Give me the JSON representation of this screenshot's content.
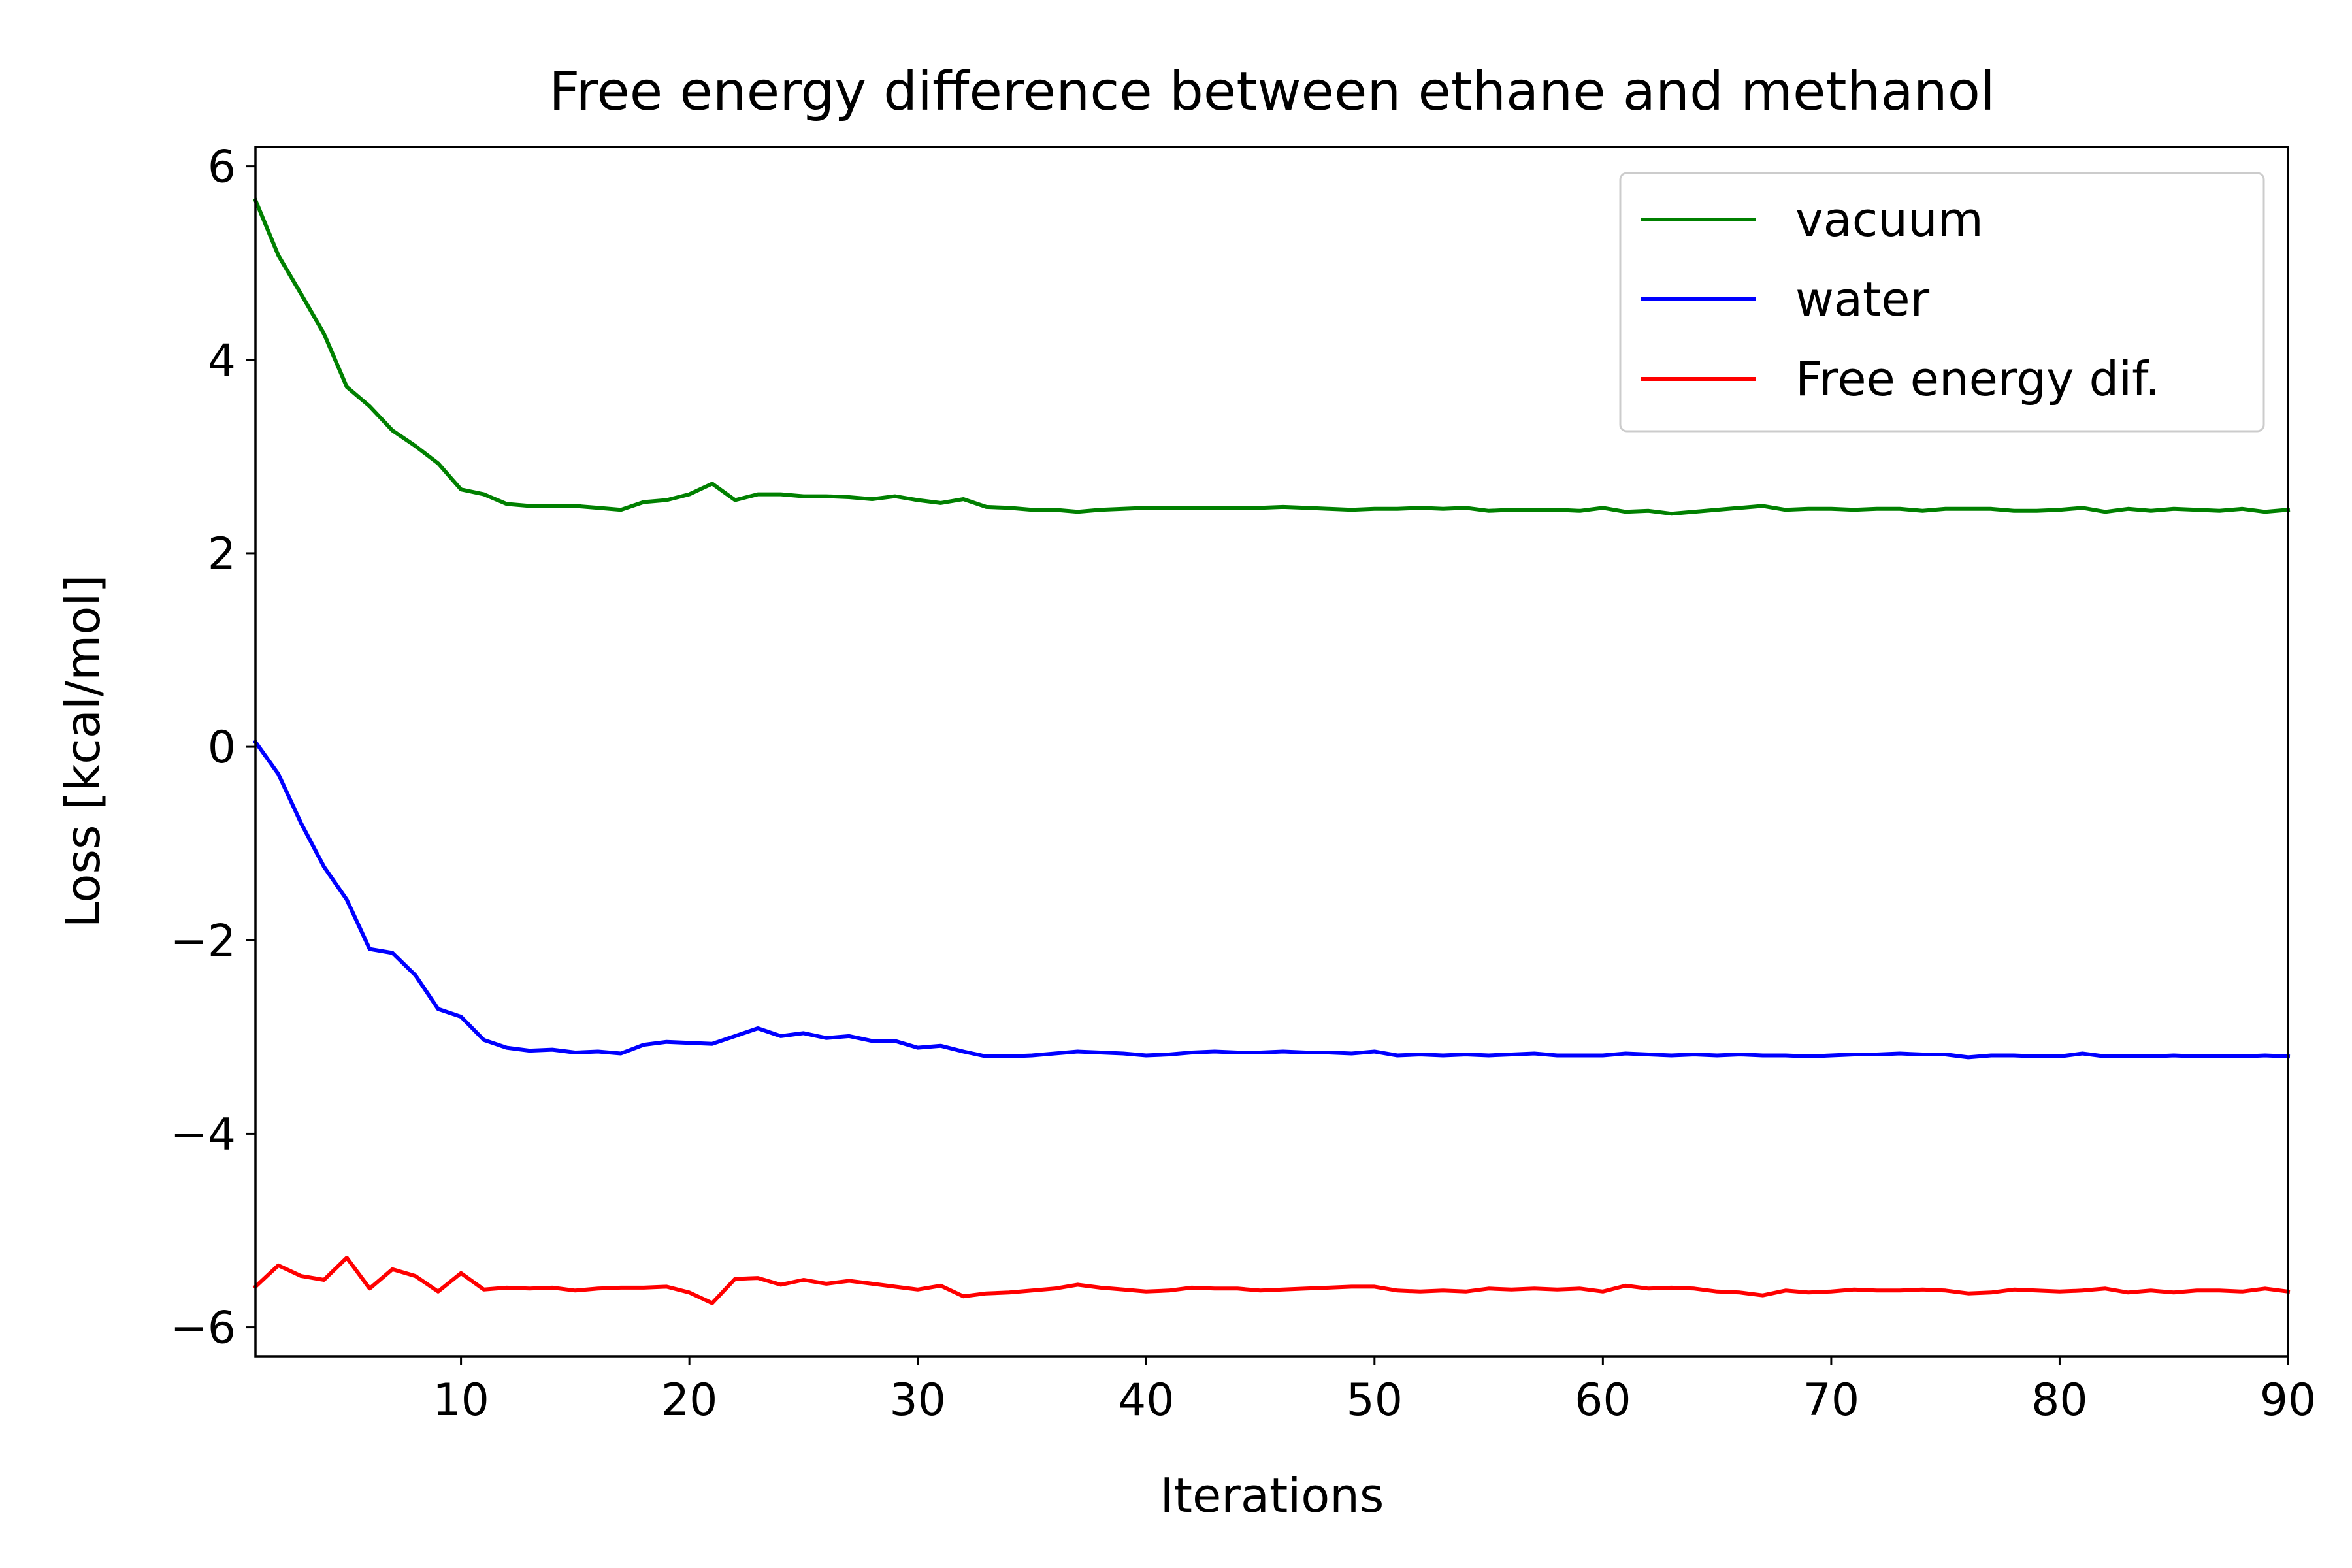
{
  "chart_data": {
    "type": "line",
    "title": "Free energy difference between ethane and methanol",
    "xlabel": "Iterations",
    "ylabel": "Loss [kcal/mol]",
    "xlim": [
      1,
      90
    ],
    "ylim": [
      -6.3,
      6.2
    ],
    "xticks": [
      10,
      20,
      30,
      40,
      50,
      60,
      70,
      80,
      90
    ],
    "xtick_labels": [
      "10",
      "20",
      "30",
      "40",
      "50",
      "60",
      "70",
      "80",
      "90"
    ],
    "yticks": [
      6,
      4,
      2,
      0,
      -2,
      -4,
      -6
    ],
    "ytick_labels": [
      "6",
      "4",
      "2",
      "0",
      "−2",
      "−4",
      "−6"
    ],
    "grid": false,
    "legend_position": "top-right",
    "x": [
      1,
      2,
      3,
      4,
      5,
      6,
      7,
      8,
      9,
      10,
      11,
      12,
      13,
      14,
      15,
      16,
      17,
      18,
      19,
      20,
      21,
      22,
      23,
      24,
      25,
      26,
      27,
      28,
      29,
      30,
      31,
      32,
      33,
      34,
      35,
      36,
      37,
      38,
      39,
      40,
      41,
      42,
      43,
      44,
      45,
      46,
      47,
      48,
      49,
      50,
      51,
      52,
      53,
      54,
      55,
      56,
      57,
      58,
      59,
      60,
      61,
      62,
      63,
      64,
      65,
      66,
      67,
      68,
      69,
      70,
      71,
      72,
      73,
      74,
      75,
      76,
      77,
      78,
      79,
      80,
      81,
      82,
      83,
      84,
      85,
      86,
      87,
      88,
      89,
      90
    ],
    "series": [
      {
        "name": "vacuum",
        "color": "#008000",
        "values": [
          5.65,
          5.08,
          4.68,
          4.27,
          3.72,
          3.52,
          3.27,
          3.11,
          2.93,
          2.66,
          2.61,
          2.51,
          2.49,
          2.49,
          2.49,
          2.47,
          2.45,
          2.53,
          2.55,
          2.61,
          2.72,
          2.55,
          2.61,
          2.61,
          2.59,
          2.59,
          2.58,
          2.56,
          2.59,
          2.55,
          2.52,
          2.56,
          2.48,
          2.47,
          2.45,
          2.45,
          2.43,
          2.45,
          2.46,
          2.47,
          2.47,
          2.47,
          2.47,
          2.47,
          2.47,
          2.48,
          2.47,
          2.46,
          2.45,
          2.46,
          2.46,
          2.47,
          2.46,
          2.47,
          2.44,
          2.45,
          2.45,
          2.45,
          2.44,
          2.47,
          2.43,
          2.44,
          2.41,
          2.43,
          2.45,
          2.47,
          2.49,
          2.45,
          2.46,
          2.46,
          2.45,
          2.46,
          2.46,
          2.44,
          2.46,
          2.46,
          2.46,
          2.44,
          2.44,
          2.45,
          2.47,
          2.43,
          2.46,
          2.44,
          2.46,
          2.45,
          2.44,
          2.46,
          2.43,
          2.45
        ]
      },
      {
        "name": "water",
        "color": "#0000ff",
        "values": [
          0.05,
          -0.28,
          -0.79,
          -1.24,
          -1.58,
          -2.09,
          -2.13,
          -2.36,
          -2.71,
          -2.79,
          -3.03,
          -3.11,
          -3.14,
          -3.13,
          -3.16,
          -3.15,
          -3.17,
          -3.08,
          -3.05,
          -3.06,
          -3.07,
          -2.99,
          -2.91,
          -2.99,
          -2.96,
          -3.01,
          -2.99,
          -3.04,
          -3.04,
          -3.11,
          -3.09,
          -3.15,
          -3.2,
          -3.2,
          -3.19,
          -3.17,
          -3.15,
          -3.16,
          -3.17,
          -3.19,
          -3.18,
          -3.16,
          -3.15,
          -3.16,
          -3.16,
          -3.15,
          -3.16,
          -3.16,
          -3.17,
          -3.15,
          -3.19,
          -3.18,
          -3.19,
          -3.18,
          -3.19,
          -3.18,
          -3.17,
          -3.19,
          -3.19,
          -3.19,
          -3.17,
          -3.18,
          -3.19,
          -3.18,
          -3.19,
          -3.18,
          -3.19,
          -3.19,
          -3.2,
          -3.19,
          -3.18,
          -3.18,
          -3.17,
          -3.18,
          -3.18,
          -3.21,
          -3.19,
          -3.19,
          -3.2,
          -3.2,
          -3.17,
          -3.2,
          -3.2,
          -3.2,
          -3.19,
          -3.2,
          -3.2,
          -3.2,
          -3.19,
          -3.2
        ]
      },
      {
        "name": "Free energy dif.",
        "color": "#ff0000",
        "values": [
          -5.58,
          -5.36,
          -5.47,
          -5.51,
          -5.28,
          -5.6,
          -5.4,
          -5.47,
          -5.63,
          -5.44,
          -5.61,
          -5.59,
          -5.6,
          -5.59,
          -5.62,
          -5.6,
          -5.59,
          -5.59,
          -5.58,
          -5.64,
          -5.75,
          -5.5,
          -5.49,
          -5.56,
          -5.51,
          -5.55,
          -5.52,
          -5.55,
          -5.58,
          -5.61,
          -5.57,
          -5.68,
          -5.65,
          -5.64,
          -5.62,
          -5.6,
          -5.56,
          -5.59,
          -5.61,
          -5.63,
          -5.62,
          -5.59,
          -5.6,
          -5.6,
          -5.62,
          -5.61,
          -5.6,
          -5.59,
          -5.58,
          -5.58,
          -5.62,
          -5.63,
          -5.62,
          -5.63,
          -5.6,
          -5.61,
          -5.6,
          -5.61,
          -5.6,
          -5.63,
          -5.57,
          -5.6,
          -5.59,
          -5.6,
          -5.63,
          -5.64,
          -5.67,
          -5.62,
          -5.64,
          -5.63,
          -5.61,
          -5.62,
          -5.62,
          -5.61,
          -5.62,
          -5.65,
          -5.64,
          -5.61,
          -5.62,
          -5.63,
          -5.62,
          -5.6,
          -5.64,
          -5.62,
          -5.64,
          -5.62,
          -5.62,
          -5.63,
          -5.6,
          -5.63
        ]
      }
    ]
  }
}
